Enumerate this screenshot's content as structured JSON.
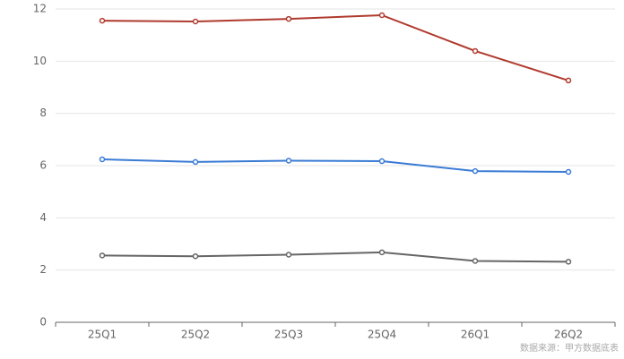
{
  "chart_data": {
    "type": "line",
    "categories": [
      "25Q1",
      "25Q2",
      "25Q3",
      "25Q4",
      "26Q1",
      "26Q2"
    ],
    "series": [
      {
        "color": "#b03a2e",
        "values": [
          11.55,
          11.52,
          11.62,
          11.76,
          10.39,
          9.26
        ]
      },
      {
        "color": "#3a7bd5",
        "values": [
          6.24,
          6.14,
          6.19,
          6.17,
          5.79,
          5.76
        ]
      },
      {
        "color": "#666666",
        "values": [
          2.56,
          2.53,
          2.59,
          2.68,
          2.35,
          2.32
        ]
      }
    ],
    "ylim": [
      0,
      12
    ],
    "yticks": [
      0,
      2,
      4,
      6,
      8,
      10,
      12
    ],
    "grid": true,
    "source": "数据来源：甲方数据底表"
  }
}
